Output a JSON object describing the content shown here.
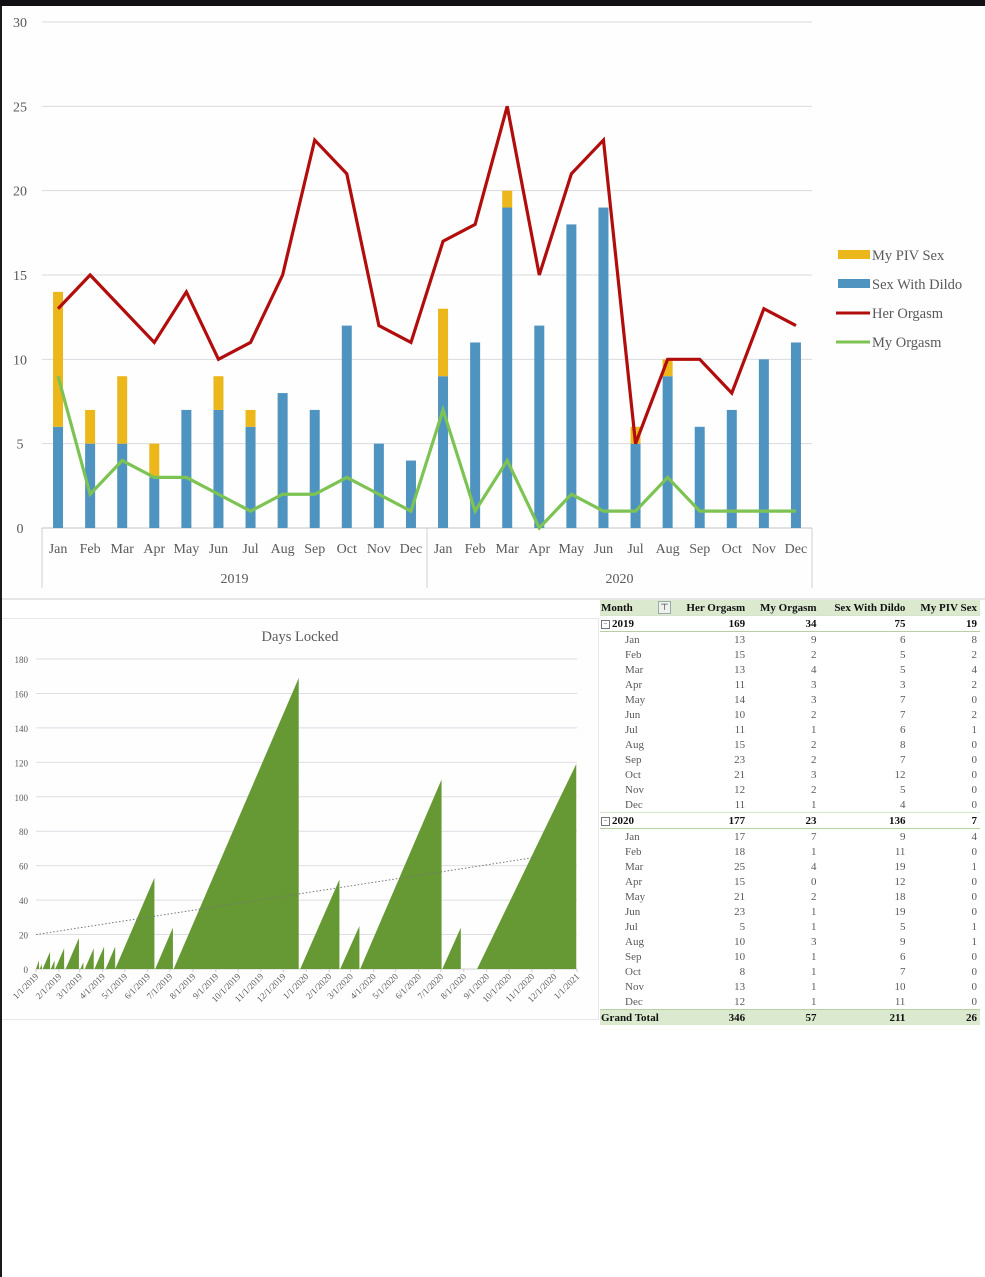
{
  "chart_data": [
    {
      "type": "bar",
      "subtype": "stacked-bar-with-lines",
      "title": "",
      "xlabel": "",
      "ylabel": "",
      "ylim": [
        0,
        30
      ],
      "yticks": [
        0,
        5,
        10,
        15,
        20,
        25,
        30
      ],
      "grid": true,
      "legend_position": "right",
      "group_labels": [
        "2019",
        "2020"
      ],
      "categories": [
        "Jan",
        "Feb",
        "Mar",
        "Apr",
        "May",
        "Jun",
        "Jul",
        "Aug",
        "Sep",
        "Oct",
        "Nov",
        "Dec",
        "Jan",
        "Feb",
        "Mar",
        "Apr",
        "May",
        "Jun",
        "Jul",
        "Aug",
        "Sep",
        "Oct",
        "Nov",
        "Dec"
      ],
      "series": [
        {
          "name": "Sex With Dildo",
          "kind": "bar",
          "color": "#4f93c0",
          "values": [
            6,
            5,
            5,
            3,
            7,
            7,
            6,
            8,
            7,
            12,
            5,
            4,
            9,
            11,
            19,
            12,
            18,
            19,
            5,
            9,
            6,
            7,
            10,
            11
          ]
        },
        {
          "name": "My PIV Sex",
          "kind": "bar",
          "color": "#ecb71b",
          "values": [
            8,
            2,
            4,
            2,
            0,
            2,
            1,
            0,
            0,
            0,
            0,
            0,
            4,
            0,
            1,
            0,
            0,
            0,
            1,
            1,
            0,
            0,
            0,
            0
          ]
        },
        {
          "name": "Her Orgasm",
          "kind": "line",
          "color": "#b20d0d",
          "values": [
            13,
            15,
            13,
            11,
            14,
            10,
            11,
            15,
            23,
            21,
            12,
            11,
            17,
            18,
            25,
            15,
            21,
            23,
            5,
            10,
            10,
            8,
            13,
            12
          ]
        },
        {
          "name": "My Orgasm",
          "kind": "line",
          "color": "#7dc353",
          "values": [
            9,
            2,
            4,
            3,
            3,
            2,
            1,
            2,
            2,
            3,
            2,
            1,
            7,
            1,
            4,
            0,
            2,
            1,
            1,
            3,
            1,
            1,
            1,
            1
          ]
        }
      ],
      "legend": [
        "My PIV Sex",
        "Sex With Dildo",
        "Her Orgasm",
        "My Orgasm"
      ]
    },
    {
      "type": "area",
      "title": "Days Locked",
      "xlabel": "",
      "ylabel": "",
      "ylim": [
        0,
        180
      ],
      "yticks": [
        0,
        20,
        40,
        60,
        80,
        100,
        120,
        140,
        160,
        180
      ],
      "xticks": [
        "1/1/2019",
        "2/1/2019",
        "3/1/2019",
        "4/1/2019",
        "5/1/2019",
        "6/1/2019",
        "7/1/2019",
        "8/1/2019",
        "9/1/2019",
        "10/1/2019",
        "11/1/2019",
        "12/1/2019",
        "1/1/2020",
        "2/1/2020",
        "3/1/2020",
        "4/1/2020",
        "5/1/2020",
        "6/1/2020",
        "7/1/2020",
        "8/1/2020",
        "9/1/2020",
        "10/1/2020",
        "11/1/2020",
        "12/1/2020",
        "1/1/2021"
      ],
      "grid": true,
      "color": "#669933",
      "trendline": {
        "style": "dotted",
        "start": 20,
        "end": 65
      },
      "streaks": [
        {
          "start": "1/1/2019",
          "end": "1/5/2019",
          "peak": 5
        },
        {
          "start": "1/6/2019",
          "end": "1/9/2019",
          "peak": 3
        },
        {
          "start": "1/10/2019",
          "end": "1/20/2019",
          "peak": 10
        },
        {
          "start": "1/21/2019",
          "end": "1/26/2019",
          "peak": 5
        },
        {
          "start": "1/27/2019",
          "end": "2/8/2019",
          "peak": 12
        },
        {
          "start": "2/10/2019",
          "end": "2/28/2019",
          "peak": 18
        },
        {
          "start": "3/2/2019",
          "end": "3/6/2019",
          "peak": 4
        },
        {
          "start": "3/8/2019",
          "end": "3/20/2019",
          "peak": 12
        },
        {
          "start": "3/21/2019",
          "end": "4/3/2019",
          "peak": 13
        },
        {
          "start": "4/5/2019",
          "end": "4/18/2019",
          "peak": 13
        },
        {
          "start": "4/18/2019",
          "end": "6/10/2019",
          "peak": 53
        },
        {
          "start": "6/11/2019",
          "end": "7/5/2019",
          "peak": 24
        },
        {
          "start": "7/6/2019",
          "end": "12/22/2019",
          "peak": 169
        },
        {
          "start": "12/24/2019",
          "end": "2/15/2020",
          "peak": 52
        },
        {
          "start": "2/16/2020",
          "end": "3/13/2020",
          "peak": 25
        },
        {
          "start": "3/14/2020",
          "end": "7/2/2020",
          "peak": 110
        },
        {
          "start": "7/3/2020",
          "end": "7/28/2020",
          "peak": 24
        },
        {
          "start": "8/19/2020",
          "end": "12/31/2020",
          "peak": 119
        }
      ]
    },
    {
      "type": "table",
      "columns": [
        "Month",
        "Her Orgasm",
        "My Orgasm",
        "Sex With Dildo",
        "My PIV Sex"
      ],
      "groups": [
        {
          "label": "2019",
          "totals": [
            169,
            34,
            75,
            19
          ],
          "rows": [
            [
              "Jan",
              13,
              9,
              6,
              8
            ],
            [
              "Feb",
              15,
              2,
              5,
              2
            ],
            [
              "Mar",
              13,
              4,
              5,
              4
            ],
            [
              "Apr",
              11,
              3,
              3,
              2
            ],
            [
              "May",
              14,
              3,
              7,
              0
            ],
            [
              "Jun",
              10,
              2,
              7,
              2
            ],
            [
              "Jul",
              11,
              1,
              6,
              1
            ],
            [
              "Aug",
              15,
              2,
              8,
              0
            ],
            [
              "Sep",
              23,
              2,
              7,
              0
            ],
            [
              "Oct",
              21,
              3,
              12,
              0
            ],
            [
              "Nov",
              12,
              2,
              5,
              0
            ],
            [
              "Dec",
              11,
              1,
              4,
              0
            ]
          ]
        },
        {
          "label": "2020",
          "totals": [
            177,
            23,
            136,
            7
          ],
          "rows": [
            [
              "Jan",
              17,
              7,
              9,
              4
            ],
            [
              "Feb",
              18,
              1,
              11,
              0
            ],
            [
              "Mar",
              25,
              4,
              19,
              1
            ],
            [
              "Apr",
              15,
              0,
              12,
              0
            ],
            [
              "May",
              21,
              2,
              18,
              0
            ],
            [
              "Jun",
              23,
              1,
              19,
              0
            ],
            [
              "Jul",
              5,
              1,
              5,
              1
            ],
            [
              "Aug",
              10,
              3,
              9,
              1
            ],
            [
              "Sep",
              10,
              1,
              6,
              0
            ],
            [
              "Oct",
              8,
              1,
              7,
              0
            ],
            [
              "Nov",
              13,
              1,
              10,
              0
            ],
            [
              "Dec",
              12,
              1,
              11,
              0
            ]
          ]
        }
      ],
      "grand_total": {
        "label": "Grand Total",
        "values": [
          346,
          57,
          211,
          26
        ]
      }
    }
  ],
  "pivot": {
    "header_month": "Month",
    "header_cols": [
      "Her Orgasm",
      "My Orgasm",
      "Sex With Dildo",
      "My PIV Sex"
    ],
    "filter_icon": "filter-dropdown-icon",
    "collapse_icon": "⊟"
  },
  "colors": {
    "dildo": "#4f93c0",
    "piv": "#ecb71b",
    "her": "#b20d0d",
    "mine": "#7dc353",
    "locked": "#669933",
    "pivot_header": "#dbe9cf"
  }
}
